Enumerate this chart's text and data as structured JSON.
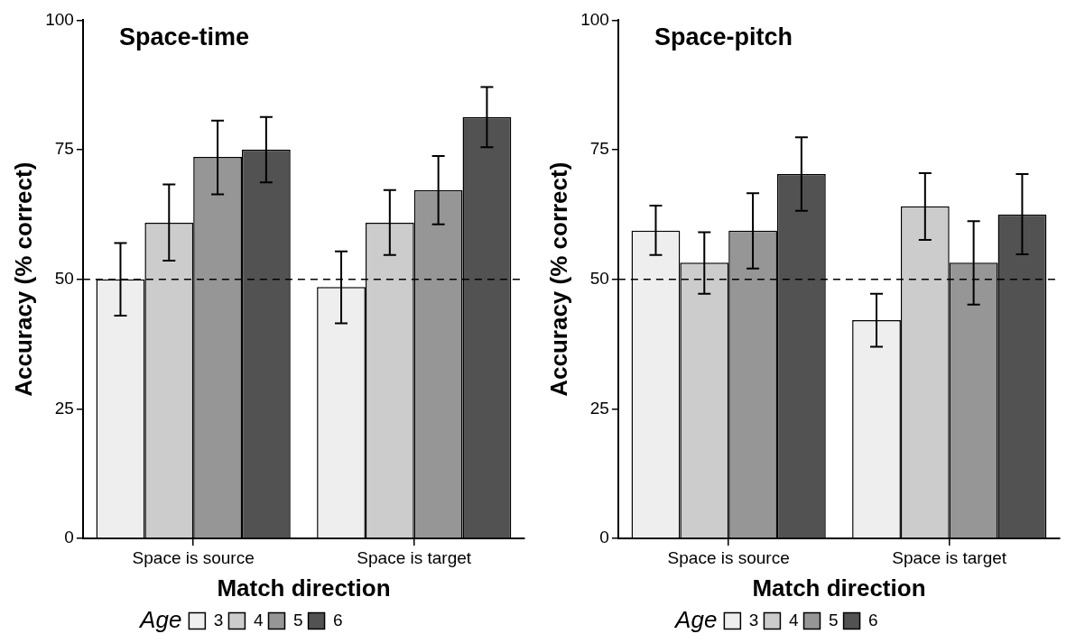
{
  "chart_data": [
    {
      "type": "bar",
      "title": "Space-time",
      "xlabel": "Match direction",
      "ylabel": "Accuracy (% correct)",
      "legend_title": "Age",
      "legend": "bottom",
      "grid": false,
      "categories": [
        "Space is source",
        "Space is target"
      ],
      "ylim": [
        0,
        100
      ],
      "yticks": [
        0,
        25,
        50,
        75,
        100
      ],
      "series": [
        {
          "name": "3",
          "color": "#eeeeee",
          "values": [
            50,
            48.5
          ],
          "errors": [
            [
              43,
              57
            ],
            [
              41.5,
              55.4
            ]
          ]
        },
        {
          "name": "4",
          "color": "#cccccc",
          "values": [
            60.9,
            60.9
          ],
          "errors": [
            [
              53.6,
              68.3
            ],
            [
              54.7,
              67.2
            ]
          ]
        },
        {
          "name": "5",
          "color": "#969696",
          "values": [
            73.6,
            67.2
          ],
          "errors": [
            [
              66.4,
              80.6
            ],
            [
              60.6,
              73.8
            ]
          ]
        },
        {
          "name": "6",
          "color": "#525252",
          "values": [
            75,
            81.3
          ],
          "errors": [
            [
              68.7,
              81.3
            ],
            [
              75.5,
              87.1
            ]
          ]
        }
      ],
      "ref_lines": [
        {
          "axis": "y",
          "value": 50,
          "line_style": "dashed",
          "color": "#000000"
        }
      ]
    },
    {
      "type": "bar",
      "title": "Space-pitch",
      "xlabel": "Match direction",
      "ylabel": "Accuracy (% correct)",
      "legend_title": "Age",
      "legend": "bottom",
      "grid": false,
      "categories": [
        "Space is source",
        "Space is target"
      ],
      "ylim": [
        0,
        100
      ],
      "yticks": [
        0,
        25,
        50,
        75,
        100
      ],
      "series": [
        {
          "name": "3",
          "color": "#eeeeee",
          "values": [
            59.4,
            42.1
          ],
          "errors": [
            [
              54.7,
              64.2
            ],
            [
              37,
              47.2
            ]
          ]
        },
        {
          "name": "4",
          "color": "#cccccc",
          "values": [
            53.2,
            64.1
          ],
          "errors": [
            [
              47.2,
              59.1
            ],
            [
              57.6,
              70.5
            ]
          ]
        },
        {
          "name": "5",
          "color": "#969696",
          "values": [
            59.4,
            53.2
          ],
          "errors": [
            [
              52.1,
              66.6
            ],
            [
              45.1,
              61.2
            ]
          ]
        },
        {
          "name": "6",
          "color": "#525252",
          "values": [
            70.3,
            62.5
          ],
          "errors": [
            [
              63.2,
              77.4
            ],
            [
              54.8,
              70.3
            ]
          ]
        }
      ],
      "ref_lines": [
        {
          "axis": "y",
          "value": 50,
          "line_style": "dashed",
          "color": "#000000"
        }
      ]
    }
  ]
}
